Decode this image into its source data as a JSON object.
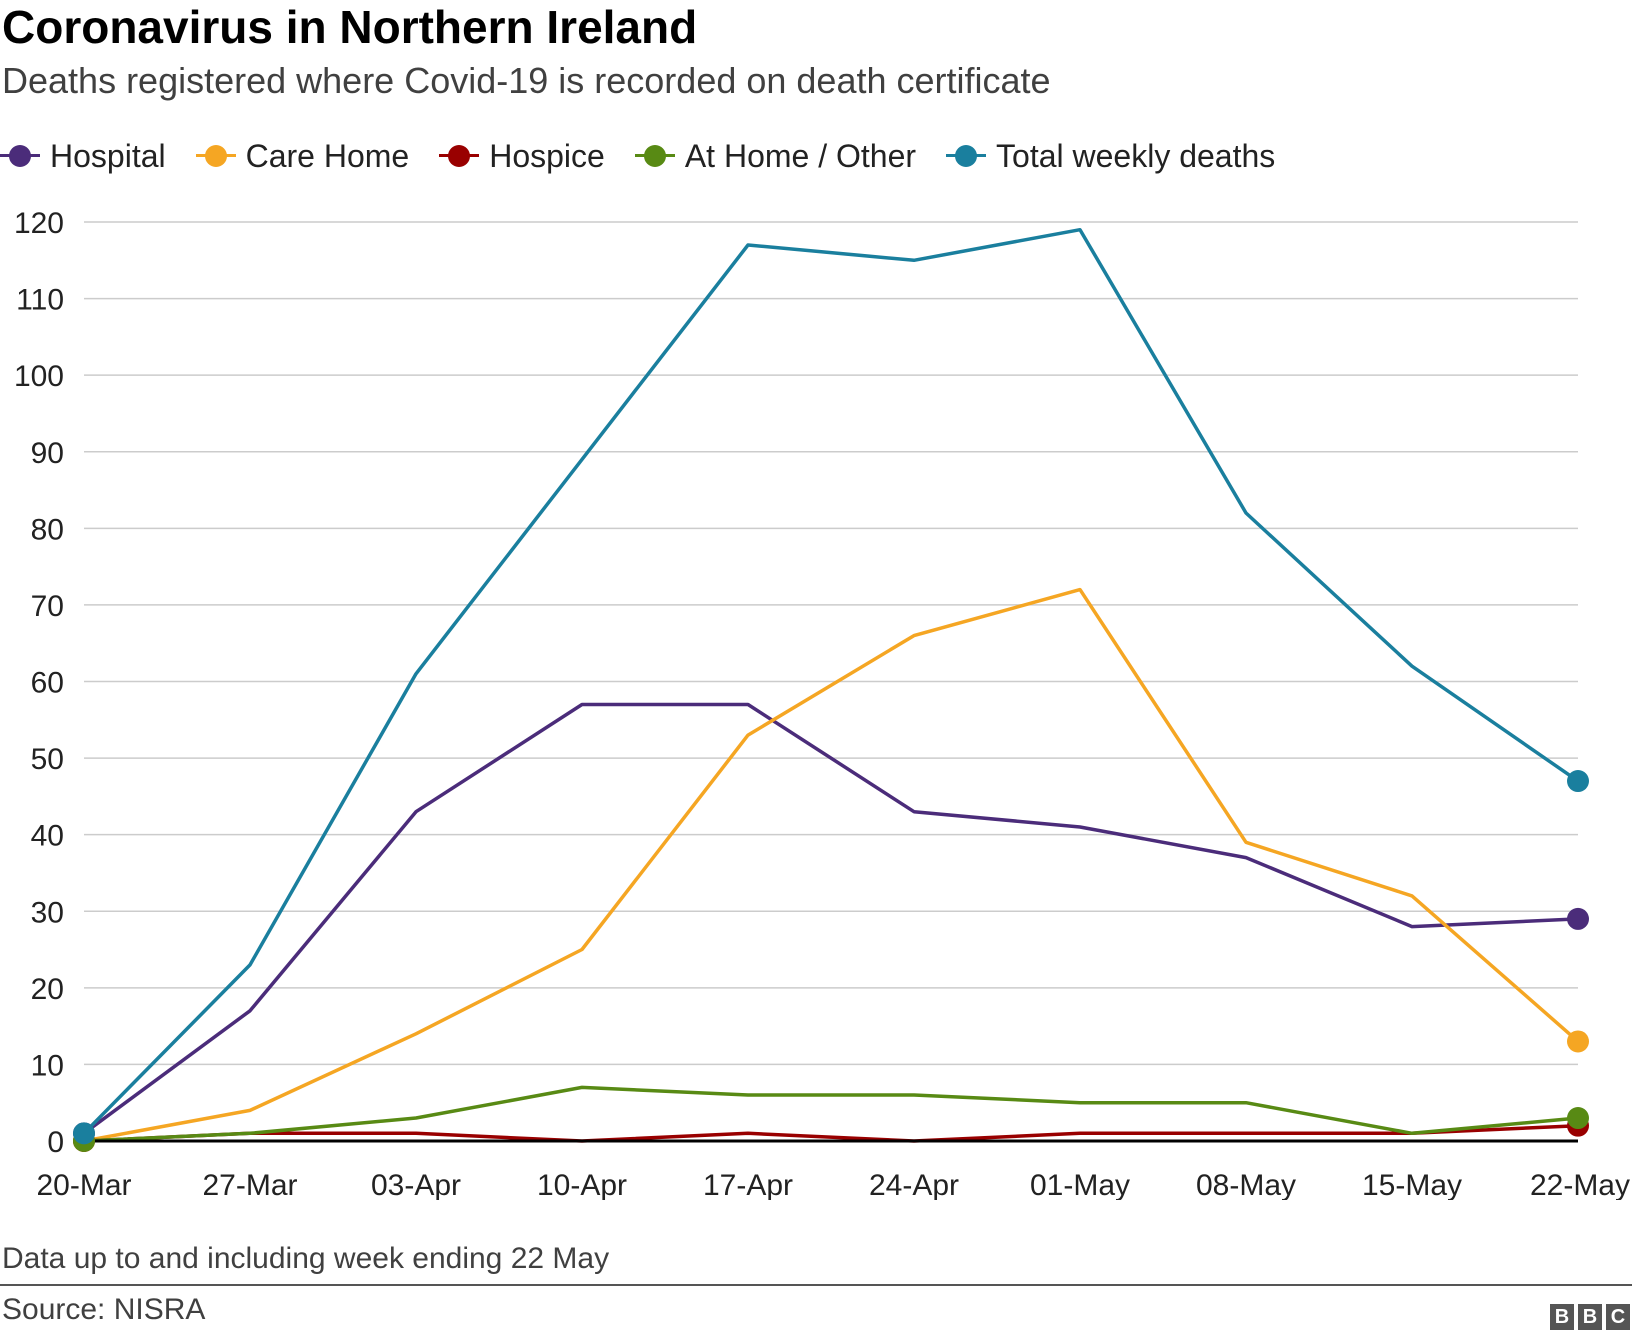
{
  "header": {
    "title": "Coronavirus in Northern Ireland",
    "subtitle": "Deaths registered where Covid-19 is recorded on death certificate"
  },
  "legend": [
    {
      "label": "Hospital",
      "color": "#4b2c7a"
    },
    {
      "label": "Care Home",
      "color": "#f5a623"
    },
    {
      "label": "Hospice",
      "color": "#990000"
    },
    {
      "label": "At Home / Other",
      "color": "#588a14"
    },
    {
      "label": "Total weekly deaths",
      "color": "#1a7f9e"
    }
  ],
  "chart_data": {
    "type": "line",
    "title": "Coronavirus in Northern Ireland",
    "subtitle": "Deaths registered where Covid-19 is recorded on death certificate",
    "categories": [
      "20-Mar",
      "27-Mar",
      "03-Apr",
      "10-Apr",
      "17-Apr",
      "24-Apr",
      "01-May",
      "08-May",
      "15-May",
      "22-May"
    ],
    "ylim": [
      0,
      120
    ],
    "yticks": [
      0,
      10,
      20,
      30,
      40,
      50,
      60,
      70,
      80,
      90,
      100,
      110,
      120
    ],
    "grid": true,
    "legend_position": "top-left",
    "series": [
      {
        "name": "Hospital",
        "color": "#4b2c7a",
        "values": [
          1,
          17,
          43,
          57,
          57,
          43,
          41,
          37,
          28,
          29
        ]
      },
      {
        "name": "Care Home",
        "color": "#f5a623",
        "values": [
          0,
          4,
          14,
          25,
          53,
          66,
          72,
          39,
          32,
          13
        ]
      },
      {
        "name": "Hospice",
        "color": "#990000",
        "values": [
          0,
          1,
          1,
          0,
          1,
          0,
          1,
          1,
          1,
          2
        ]
      },
      {
        "name": "At Home / Other",
        "color": "#588a14",
        "values": [
          0,
          1,
          3,
          7,
          6,
          6,
          5,
          5,
          1,
          3
        ]
      },
      {
        "name": "Total weekly deaths",
        "color": "#1a7f9e",
        "values": [
          1,
          23,
          61,
          89,
          117,
          115,
          119,
          82,
          62,
          47
        ]
      }
    ]
  },
  "footer": {
    "note": "Data up to and including week ending 22 May",
    "source": "Source: NISRA",
    "logo_letters": [
      "B",
      "B",
      "C"
    ]
  }
}
